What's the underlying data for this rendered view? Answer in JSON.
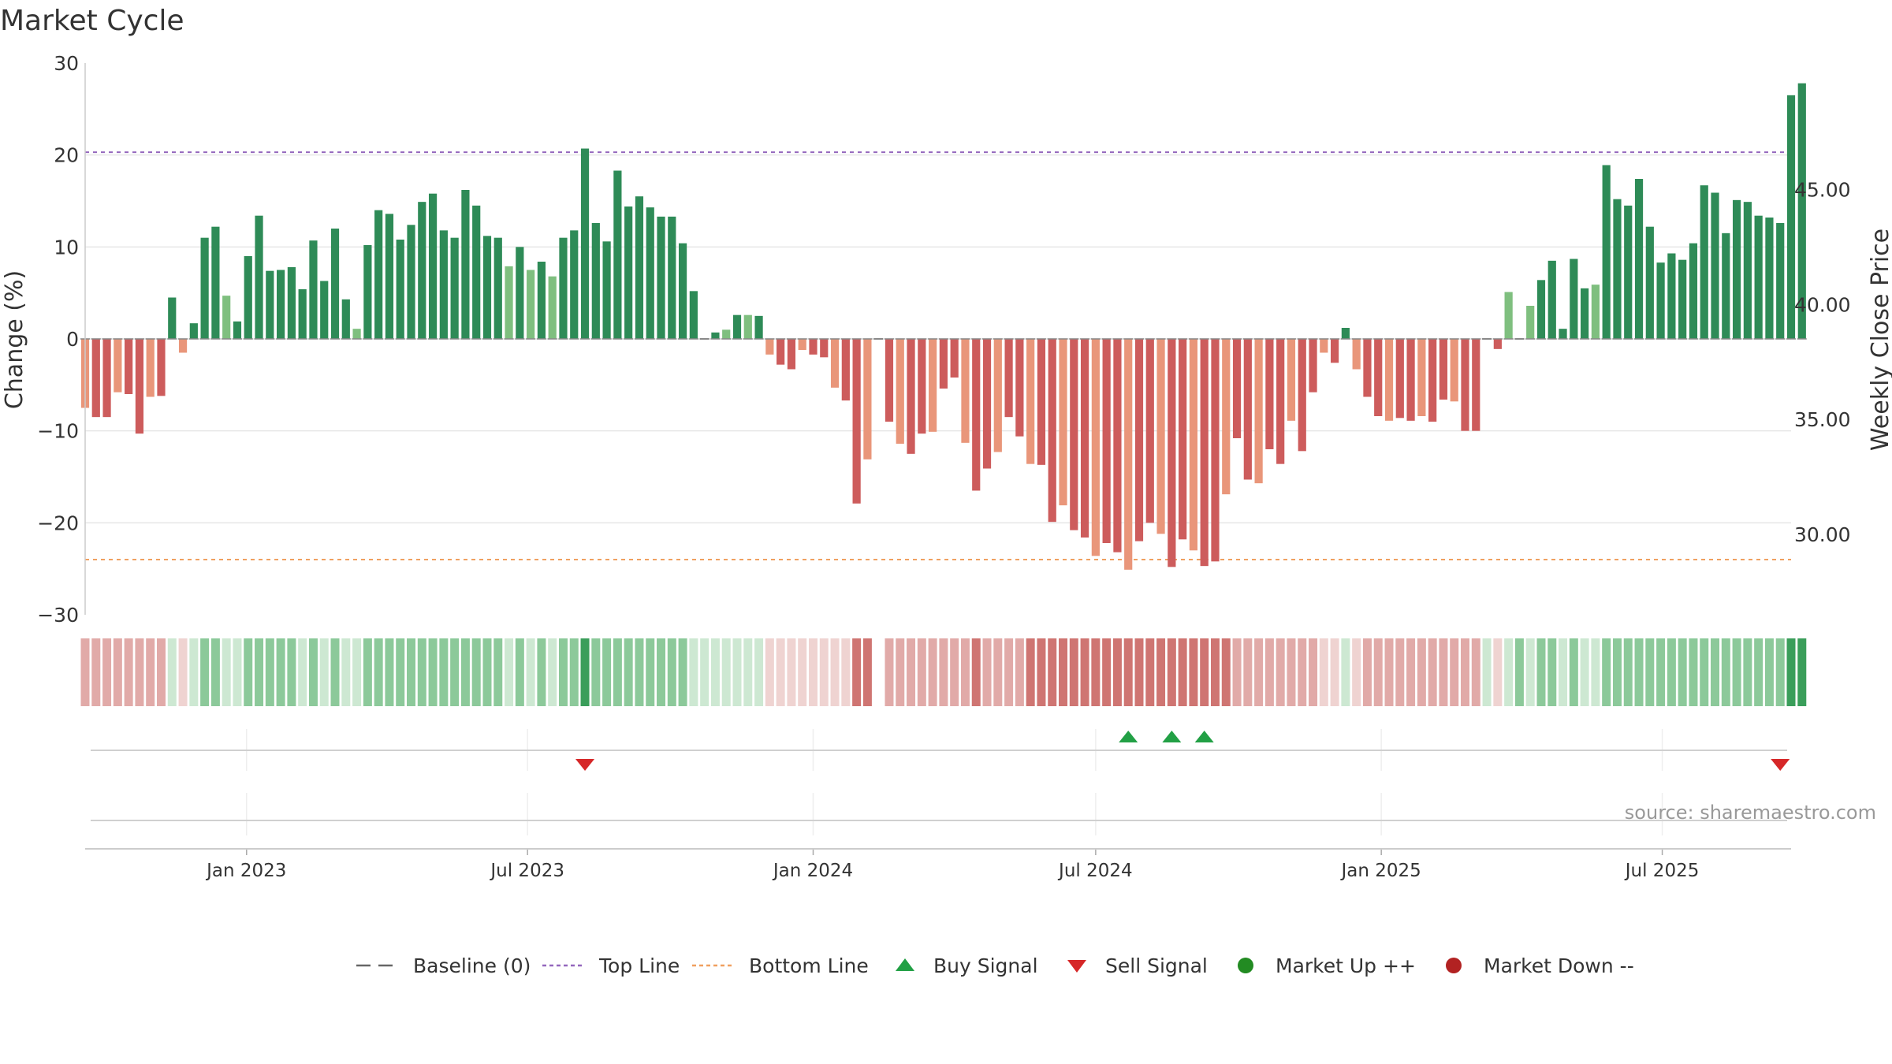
{
  "title": "Market Cycle",
  "source": "source: sharemaestro.com",
  "colors": {
    "up_strong": "#2e8b57",
    "up_light": "#7fbf7f",
    "down_strong": "#cd5c5c",
    "down_light": "#e9967a",
    "top_line": "#9467bd",
    "bottom_line": "#f0a060",
    "buy": "#22a045",
    "sell": "#d62728",
    "market_up": "#228b22",
    "market_down": "#b22222",
    "grid": "#e6e6e6",
    "baseline": "#888888"
  },
  "legend": [
    {
      "label": "Baseline (0)",
      "icon": "dash-line-icon",
      "color": "#666666"
    },
    {
      "label": "Top Line",
      "icon": "dotted-line-icon",
      "color": "#9467bd"
    },
    {
      "label": "Bottom Line",
      "icon": "dotted-line-icon",
      "color": "#f0a060"
    },
    {
      "label": "Buy Signal",
      "icon": "triangle-up-icon",
      "color": "#22a045"
    },
    {
      "label": "Sell Signal",
      "icon": "triangle-down-icon",
      "color": "#d62728"
    },
    {
      "label": "Market Up ++",
      "icon": "circle-icon",
      "color": "#228b22"
    },
    {
      "label": "Market Down --",
      "icon": "circle-icon",
      "color": "#b22222"
    }
  ],
  "chart_data": {
    "type": "bar",
    "title": "Market Cycle",
    "ylabel": "Change (%)",
    "y2label": "Weekly Close Price",
    "ylim": [
      -30,
      30
    ],
    "yticks": [
      30,
      20,
      10,
      0,
      -10,
      -20,
      -30
    ],
    "ytick_labels": [
      "30",
      "20",
      "10",
      "0",
      "−10",
      "−20",
      "−30"
    ],
    "y2ticks": [
      45.0,
      40.0,
      35.0,
      30.0
    ],
    "y2tick_labels": [
      "45.00",
      "40.00",
      "35.00",
      "30.00"
    ],
    "y2lim": [
      26.5,
      50.5
    ],
    "x_start": "2022-09-19",
    "x_end": "2025-09-22",
    "x_ticks": [
      {
        "date": "2023-01-01",
        "label": "Jan 2023"
      },
      {
        "date": "2023-07-01",
        "label": "Jul 2023"
      },
      {
        "date": "2024-01-01",
        "label": "Jan 2024"
      },
      {
        "date": "2024-07-01",
        "label": "Jul 2024"
      },
      {
        "date": "2025-01-01",
        "label": "Jan 2025"
      },
      {
        "date": "2025-07-01",
        "label": "Jul 2025"
      }
    ],
    "top_line": 20.3,
    "bottom_line": -24.0,
    "grid": true,
    "legend_position": "bottom",
    "series": [
      {
        "start": "2022-09-19",
        "values": [
          -7.5,
          -8.5,
          -8.5,
          -5.8,
          -6,
          -10.3,
          -6.3,
          -6.2,
          4.5,
          -1.5,
          1.7,
          11,
          12.2,
          4.7,
          1.9,
          9,
          13.4,
          7.4,
          7.5,
          7.8,
          5.4,
          10.7,
          6.3,
          12,
          4.3,
          1.1,
          10.2,
          14,
          13.6,
          10.8,
          12.4,
          14.9,
          15.8,
          11.8,
          11,
          16.2,
          14.5,
          11.2,
          11,
          7.9,
          10,
          7.5,
          8.4,
          6.8,
          11,
          11.8,
          20.7,
          12.6,
          10.6,
          18.3,
          14.4,
          15.5,
          14.3,
          13.3,
          13.3,
          10.4,
          5.2,
          0,
          0.7,
          1,
          2.6,
          2.6,
          2.5,
          -1.7,
          -2.8,
          -3.3,
          -1.2,
          -1.7,
          -2,
          -5.3,
          -6.7,
          -17.9,
          -13.1,
          0,
          -9,
          -11.4,
          -12.5,
          -10.3,
          -10.1,
          -5.4,
          -4.2,
          -11.3,
          -16.5,
          -14.1,
          -12.3,
          -8.5,
          -10.6,
          -13.6,
          -13.7,
          -19.9,
          -18.1,
          -20.8,
          -21.6,
          -23.6,
          -22.2,
          -23.2,
          -25.1,
          -22,
          -20,
          -21.2,
          -24.8,
          -21.8,
          -23,
          -24.7,
          -24.2,
          -16.9,
          -10.8,
          -15.3,
          -15.7,
          -12,
          -13.6,
          -8.9,
          -12.2,
          -5.8,
          -1.5,
          -2.6,
          1.2,
          -3.3,
          -6.3,
          -8.4,
          -8.9,
          -8.6,
          -8.9,
          -8.4,
          -9,
          -6.6,
          -6.8,
          -10,
          -10,
          0,
          -1.1,
          5.1,
          0,
          3.6,
          6.4,
          8.5,
          1.1,
          8.7,
          5.5,
          5.9,
          18.9,
          15.2,
          14.5,
          17.4,
          12.2,
          8.3,
          9.3,
          8.6,
          10.4,
          16.7,
          15.9,
          11.5,
          15.1,
          14.9,
          13.4,
          13.2,
          12.6,
          26.5,
          27.8
        ]
      }
    ],
    "strength_band": [
      -2,
      -2,
      -2,
      -2,
      -2,
      -2,
      -2,
      -2,
      1,
      -1,
      1,
      2,
      2,
      1,
      1,
      2,
      2,
      2,
      2,
      2,
      1,
      2,
      1,
      2,
      1,
      1,
      2,
      2,
      2,
      2,
      2,
      2,
      2,
      2,
      2,
      2,
      2,
      2,
      2,
      1,
      2,
      1,
      2,
      1,
      2,
      2,
      3,
      2,
      2,
      2,
      2,
      2,
      2,
      2,
      2,
      2,
      1,
      1,
      1,
      1,
      1,
      1,
      1,
      -1,
      -1,
      -1,
      -1,
      -1,
      -1,
      -1,
      -1,
      -3,
      -3,
      0,
      -2,
      -2,
      -2,
      -2,
      -2,
      -2,
      -2,
      -2,
      -3,
      -2,
      -2,
      -2,
      -2,
      -3,
      -3,
      -3,
      -3,
      -3,
      -3,
      -3,
      -3,
      -3,
      -3,
      -3,
      -3,
      -3,
      -3,
      -3,
      -3,
      -3,
      -3,
      -3,
      -2,
      -2,
      -2,
      -2,
      -2,
      -2,
      -2,
      -2,
      -1,
      -1,
      1,
      -1,
      -2,
      -2,
      -2,
      -2,
      -2,
      -2,
      -2,
      -2,
      -2,
      -2,
      -2,
      1,
      -1,
      1,
      2,
      1,
      2,
      2,
      1,
      2,
      1,
      1,
      2,
      2,
      2,
      2,
      2,
      2,
      2,
      2,
      2,
      2,
      2,
      2,
      2,
      2,
      2,
      2,
      2,
      3,
      3
    ],
    "buy_signals": [
      "2024-07-22",
      "2024-08-19",
      "2024-09-09"
    ],
    "sell_signals": [
      "2023-08-07",
      "2025-09-15"
    ]
  }
}
